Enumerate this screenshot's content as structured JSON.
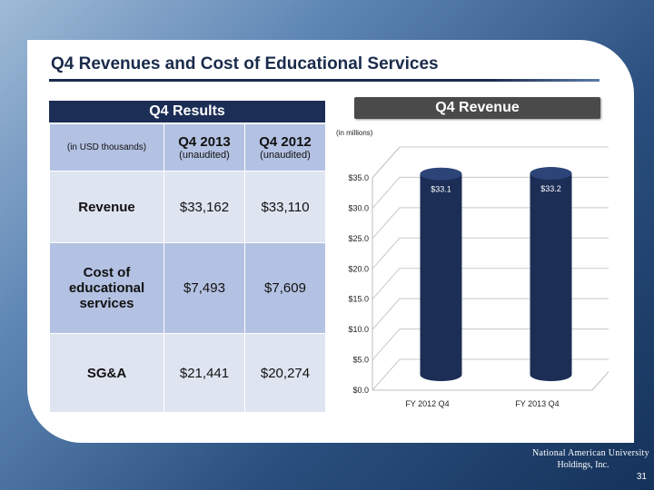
{
  "slide": {
    "title": "Q4 Revenues and Cost of Educational Services",
    "page_number": "31",
    "logo_line1": "National American University",
    "logo_line2": "Holdings, Inc."
  },
  "results_table": {
    "header": "Q4 Results",
    "units_label": "(in USD thousands)",
    "columns": [
      {
        "label": "Q4 2013",
        "sub": "(unaudited)"
      },
      {
        "label": "Q4 2012",
        "sub": "(unaudited)"
      }
    ],
    "rows": [
      {
        "label": "Revenue",
        "values": [
          "$33,162",
          "$33,110"
        ]
      },
      {
        "label": "Cost of educational services",
        "values": [
          "$7,493",
          "$7,609"
        ]
      },
      {
        "label": "SG&A",
        "values": [
          "$21,441",
          "$20,274"
        ]
      }
    ]
  },
  "revenue_panel": {
    "header": "Q4 Revenue",
    "units": "(in millions)"
  },
  "chart_data": {
    "type": "bar",
    "title": "Q4 Revenue",
    "ylabel": "",
    "xlabel": "",
    "categories": [
      "FY 2012 Q4",
      "FY 2013 Q4"
    ],
    "values": [
      33.1,
      33.2
    ],
    "data_labels": [
      "$33.1",
      "$33.2"
    ],
    "ylim": [
      0,
      35
    ],
    "yticks": [
      "$0.0",
      "$5.0",
      "$10.0",
      "$15.0",
      "$20.0",
      "$25.0",
      "$30.0",
      "$35.0"
    ],
    "ytick_values": [
      0,
      5,
      10,
      15,
      20,
      25,
      30,
      35
    ],
    "grid": true,
    "legend": "none",
    "bar_color": "#1c2e56"
  }
}
